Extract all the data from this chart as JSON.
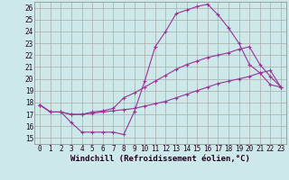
{
  "xlabel": "Windchill (Refroidissement éolien,°C)",
  "background_color": "#cce8e8",
  "grid_color": "#aaaaaa",
  "line_color": "#993399",
  "xlim": [
    -0.5,
    23.5
  ],
  "ylim": [
    14.5,
    26.5
  ],
  "xticks": [
    0,
    1,
    2,
    3,
    4,
    5,
    6,
    7,
    8,
    9,
    10,
    11,
    12,
    13,
    14,
    15,
    16,
    17,
    18,
    19,
    20,
    21,
    22,
    23
  ],
  "yticks": [
    15,
    16,
    17,
    18,
    19,
    20,
    21,
    22,
    23,
    24,
    25,
    26
  ],
  "series": [
    [
      17.8,
      17.2,
      17.2,
      16.3,
      15.5,
      15.5,
      15.5,
      15.5,
      15.3,
      17.2,
      19.8,
      22.7,
      24.0,
      25.5,
      25.8,
      26.1,
      26.3,
      25.4,
      24.3,
      23.0,
      21.2,
      20.5,
      19.5,
      19.3
    ],
    [
      17.8,
      17.2,
      17.2,
      17.0,
      17.0,
      17.2,
      17.3,
      17.5,
      18.4,
      18.8,
      19.3,
      19.8,
      20.3,
      20.8,
      21.2,
      21.5,
      21.8,
      22.0,
      22.2,
      22.5,
      22.7,
      21.2,
      20.2,
      19.3
    ],
    [
      17.8,
      17.2,
      17.2,
      17.0,
      17.0,
      17.1,
      17.2,
      17.3,
      17.4,
      17.5,
      17.7,
      17.9,
      18.1,
      18.4,
      18.7,
      19.0,
      19.3,
      19.6,
      19.8,
      20.0,
      20.2,
      20.5,
      20.7,
      19.3
    ]
  ],
  "xlabel_fontsize": 6.5,
  "tick_fontsize": 5.5
}
